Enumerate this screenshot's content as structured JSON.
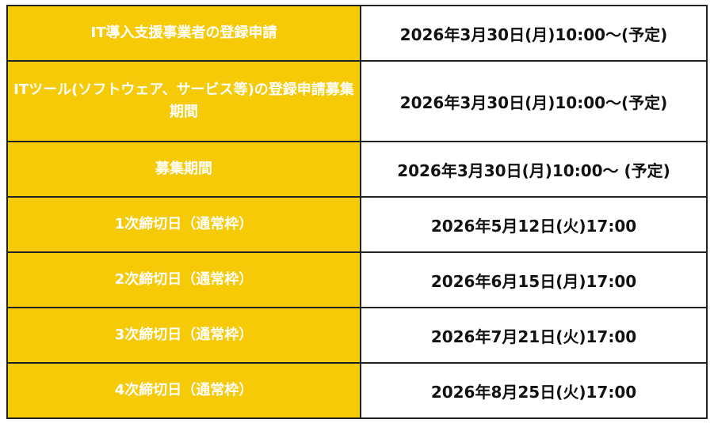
{
  "colors": {
    "label_bg": "#F7CA08",
    "label_text": "#FFFFFF",
    "value_text": "#111111"
  },
  "rows": [
    {
      "label": "IT導入支援事業者の登録申請",
      "value": "2026年3月30日(月)10:00〜(予定)"
    },
    {
      "label": "ITツール(ソフトウェア、サービス等)の登録申請募集期間",
      "value": "2026年3月30日(月)10:00〜(予定)"
    },
    {
      "label": "募集期間",
      "value": "2026年3月30日(月)10:00〜 (予定)"
    },
    {
      "label": "1次締切日（通常枠）",
      "value": "2026年5月12日(火)17:00"
    },
    {
      "label": "2次締切日（通常枠）",
      "value": "2026年6月15日(月)17:00"
    },
    {
      "label": "3次締切日（通常枠）",
      "value": "2026年7月21日(火)17:00"
    },
    {
      "label": "4次締切日（通常枠）",
      "value": "2026年8月25日(火)17:00"
    }
  ]
}
